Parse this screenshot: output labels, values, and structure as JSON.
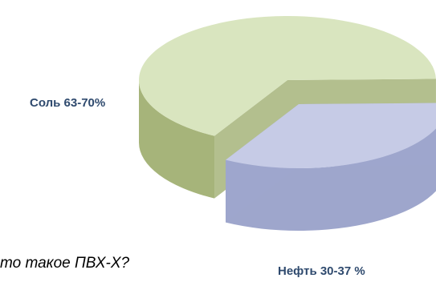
{
  "caption": "то такое ПВХ-Х?",
  "chart_data": {
    "type": "pie",
    "title": "",
    "style": "3d-exploded",
    "slices": [
      {
        "label": "Соль  63-70%",
        "value": 66.5,
        "range": [
          63,
          70
        ],
        "color": "#d9e5bf",
        "side_color": "#a6b47a",
        "label_color": "#2f4a6e"
      },
      {
        "label": "Нефть 30-37 %",
        "value": 33.5,
        "range": [
          30,
          37
        ],
        "color": "#c6cbe6",
        "side_color": "#9ea6cc",
        "label_color": "#2f4a6e"
      }
    ]
  }
}
